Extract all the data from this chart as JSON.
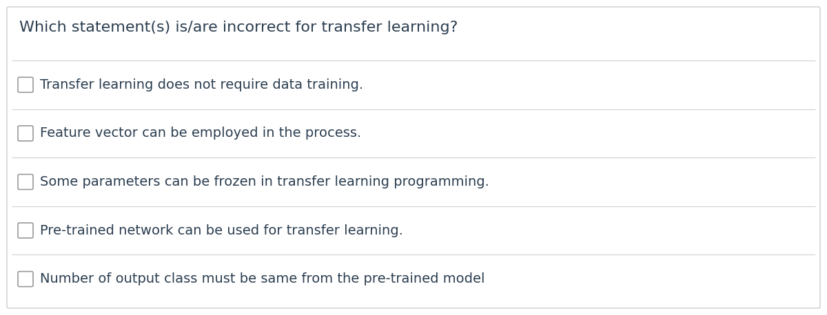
{
  "title": "Which statement(s) is/are incorrect for transfer learning?",
  "options": [
    "Transfer learning does not require data training.",
    "Feature vector can be employed in the process.",
    "Some parameters can be frozen in transfer learning programming.",
    "Pre-trained network can be used for transfer learning.",
    "Number of output class must be same from the pre-trained model"
  ],
  "bg_color": "#ffffff",
  "border_color": "#cccccc",
  "divider_color": "#d0d0d0",
  "title_color": "#2c3e50",
  "option_text_color": "#2c3e50",
  "title_fontsize": 16,
  "option_fontsize": 14,
  "checkbox_color": "#999999",
  "fig_width": 12.0,
  "fig_height": 4.58,
  "dpi": 100
}
